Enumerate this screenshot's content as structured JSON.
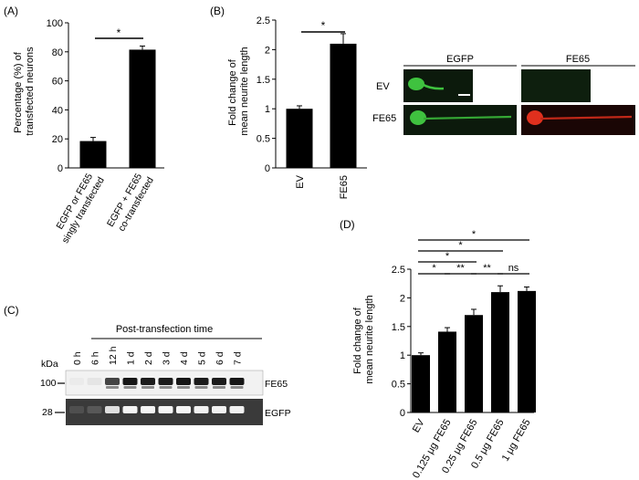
{
  "panels": {
    "A": {
      "label": "(A)",
      "chart_ref": 0,
      "ylabel_lines": [
        "Percentage (%) of",
        "transfected neurons"
      ],
      "xtick_lines": [
        [
          "EGFP or FE65",
          "singly transfected"
        ],
        [
          "EGFP + FE65",
          "co-transfected"
        ]
      ],
      "sig": "*"
    },
    "B": {
      "label": "(B)",
      "chart_ref": 1,
      "ylabel_lines": [
        "Fold change of",
        "mean neurite length"
      ],
      "sig": "*",
      "images": {
        "col_headers": [
          "EGFP",
          "FE65"
        ],
        "row_labels": [
          "EV",
          "FE65"
        ],
        "colors": {
          "green": "#3fc23f",
          "red": "#e0301e",
          "dark": "#0c1a0c"
        }
      }
    },
    "C": {
      "label": "(C)",
      "title": "Post-transfection time",
      "kda_label": "kDa",
      "lanes": [
        "0 h",
        "6 h",
        "12 h",
        "1 d",
        "2 d",
        "3 d",
        "4 d",
        "5 d",
        "6 d",
        "7 d"
      ],
      "bands": [
        {
          "marker": "100",
          "name": "FE65",
          "intensity": [
            0.02,
            0.05,
            0.75,
            0.95,
            0.92,
            0.92,
            0.95,
            0.92,
            0.92,
            0.95
          ]
        },
        {
          "marker": "28",
          "name": "EGFP",
          "intensity": [
            0.05,
            0.1,
            0.85,
            0.97,
            0.97,
            0.97,
            0.97,
            0.95,
            0.95,
            0.95
          ]
        }
      ]
    },
    "D": {
      "label": "(D)",
      "chart_ref": 2,
      "ylabel_lines": [
        "Fold change of",
        "mean neurite length"
      ],
      "comparisons": [
        {
          "from": 0,
          "to": 4,
          "text": "*"
        },
        {
          "from": 0,
          "to": 3,
          "text": "*"
        },
        {
          "from": 0,
          "to": 2,
          "text": "*"
        },
        {
          "from": 0,
          "to": 1,
          "text": "*"
        },
        {
          "from": 1,
          "to": 2,
          "text": "**"
        },
        {
          "from": 2,
          "to": 3,
          "text": "**"
        },
        {
          "from": 3,
          "to": 4,
          "text": "ns"
        }
      ]
    }
  },
  "chart_data": [
    {
      "type": "bar",
      "panel": "A",
      "categories": [
        "EGFP or FE65 singly transfected",
        "EGFP + FE65 co-transfected"
      ],
      "values": [
        18.5,
        81.5
      ],
      "errors": [
        2.5,
        2.5
      ],
      "ylabel": "Percentage (%) of transfected neurons",
      "ylim": [
        0,
        100
      ],
      "yticks": [
        0,
        20,
        40,
        60,
        80,
        100
      ]
    },
    {
      "type": "bar",
      "panel": "B",
      "categories": [
        "EV",
        "FE65"
      ],
      "values": [
        1.0,
        2.1
      ],
      "errors": [
        0.05,
        0.17
      ],
      "ylabel": "Fold change of mean neurite length",
      "ylim": [
        0,
        2.5
      ],
      "yticks": [
        "0",
        "0.5",
        "1",
        "1.5",
        "2",
        "2.5"
      ]
    },
    {
      "type": "bar",
      "panel": "D",
      "categories": [
        "EV",
        "0.125 μg FE65",
        "0.25 μg FE65",
        "0.5 μg FE65",
        "1 μg FE65"
      ],
      "values": [
        1.0,
        1.41,
        1.7,
        2.1,
        2.12
      ],
      "errors": [
        0.04,
        0.07,
        0.1,
        0.11,
        0.07
      ],
      "ylabel": "Fold change of mean neurite length",
      "ylim": [
        0,
        2.5
      ],
      "yticks": [
        "0",
        "0.5",
        "1",
        "1.5",
        "2",
        "2.5"
      ]
    }
  ]
}
